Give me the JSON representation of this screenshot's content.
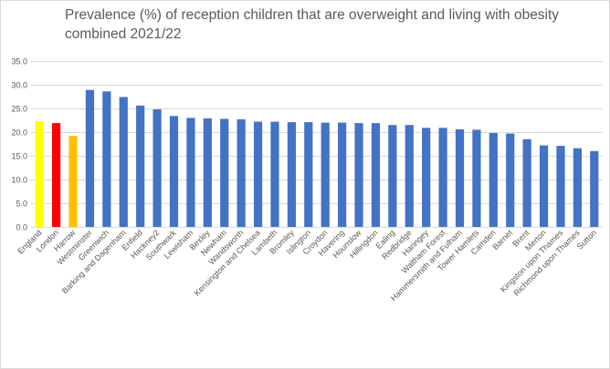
{
  "chart_data": {
    "type": "bar",
    "title": "Prevalence (%) of reception children that are overweight and living with obesity combined 2021/22",
    "xlabel": "",
    "ylabel": "",
    "ylim": [
      0,
      35
    ],
    "yticks": [
      0,
      5,
      10,
      15,
      20,
      25,
      30,
      35
    ],
    "ytick_labels": [
      "0.0",
      "5.0",
      "10.0",
      "15.0",
      "20.0",
      "25.0",
      "30.0",
      "35.0"
    ],
    "grid": "horizontal",
    "legend": "none",
    "colors": {
      "England": "#ffff00",
      "London": "#ff0000",
      "Harrow": "#ffc000",
      "default": "#4472c4"
    },
    "categories": [
      "England",
      "London",
      "Harrow",
      "Westminster",
      "Greenwich",
      "Barking and Dagenham",
      "Enfield",
      "Hackney2",
      "Southwark",
      "Lewisham",
      "Bexley",
      "Newham",
      "Wandsworth",
      "Kensington and Chelsea",
      "Lambeth",
      "Bromley",
      "Islington",
      "Croydon",
      "Havering",
      "Hounslow",
      "Hillingdon",
      "Ealing",
      "Redbridge",
      "Haringey",
      "Waltham Forest",
      "Hammersmith and Fulham",
      "Tower Hamlets",
      "Camden",
      "Barnet",
      "Brent",
      "Merton",
      "Kingston upon Thames",
      "Richmond upon Thames",
      "Sutton"
    ],
    "values": [
      22.3,
      21.9,
      19.2,
      28.9,
      28.6,
      27.4,
      25.6,
      24.8,
      23.4,
      23.0,
      22.9,
      22.8,
      22.7,
      22.2,
      22.2,
      22.1,
      22.1,
      22.0,
      22.0,
      21.9,
      21.9,
      21.5,
      21.5,
      20.9,
      20.9,
      20.6,
      20.5,
      19.8,
      19.7,
      18.5,
      17.2,
      17.1,
      16.6,
      16.0
    ]
  }
}
